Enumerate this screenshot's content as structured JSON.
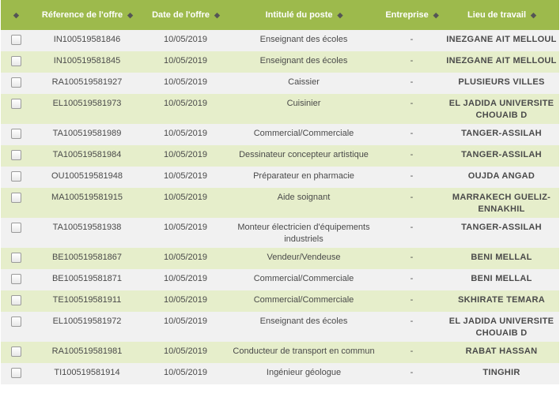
{
  "columns": {
    "select_sort": "◆",
    "reference": "Réference de l'offre",
    "date": "Date de l'offre",
    "intitule": "Intitulé du poste",
    "entreprise": "Entreprise",
    "lieu": "Lieu de travail",
    "sort_icon": "◆"
  },
  "rows": [
    {
      "ref": "IN100519581846",
      "date": "10/05/2019",
      "poste": "Enseignant des écoles",
      "entreprise": "-",
      "lieu": "INEZGANE AIT MELLOUL"
    },
    {
      "ref": "IN100519581845",
      "date": "10/05/2019",
      "poste": "Enseignant des écoles",
      "entreprise": "-",
      "lieu": "INEZGANE AIT MELLOUL"
    },
    {
      "ref": "RA100519581927",
      "date": "10/05/2019",
      "poste": "Caissier",
      "entreprise": "-",
      "lieu": "PLUSIEURS VILLES"
    },
    {
      "ref": "EL100519581973",
      "date": "10/05/2019",
      "poste": "Cuisinier",
      "entreprise": "-",
      "lieu": "EL JADIDA UNIVERSITE CHOUAIB D"
    },
    {
      "ref": "TA100519581989",
      "date": "10/05/2019",
      "poste": "Commercial/Commerciale",
      "entreprise": "-",
      "lieu": "TANGER-ASSILAH"
    },
    {
      "ref": "TA100519581984",
      "date": "10/05/2019",
      "poste": "Dessinateur concepteur artistique",
      "entreprise": "-",
      "lieu": "TANGER-ASSILAH"
    },
    {
      "ref": "OU100519581948",
      "date": "10/05/2019",
      "poste": "Préparateur en pharmacie",
      "entreprise": "-",
      "lieu": "OUJDA ANGAD"
    },
    {
      "ref": "MA100519581915",
      "date": "10/05/2019",
      "poste": "Aide soignant",
      "entreprise": "-",
      "lieu": "MARRAKECH GUELIZ-ENNAKHIL"
    },
    {
      "ref": "TA100519581938",
      "date": "10/05/2019",
      "poste": "Monteur électricien d'équipements industriels",
      "entreprise": "-",
      "lieu": "TANGER-ASSILAH"
    },
    {
      "ref": "BE100519581867",
      "date": "10/05/2019",
      "poste": "Vendeur/Vendeuse",
      "entreprise": "-",
      "lieu": "BENI MELLAL"
    },
    {
      "ref": "BE100519581871",
      "date": "10/05/2019",
      "poste": "Commercial/Commerciale",
      "entreprise": "-",
      "lieu": "BENI MELLAL"
    },
    {
      "ref": "TE100519581911",
      "date": "10/05/2019",
      "poste": "Commercial/Commerciale",
      "entreprise": "-",
      "lieu": "SKHIRATE TEMARA"
    },
    {
      "ref": "EL100519581972",
      "date": "10/05/2019",
      "poste": "Enseignant des écoles",
      "entreprise": "-",
      "lieu": "EL JADIDA UNIVERSITE CHOUAIB D"
    },
    {
      "ref": "RA100519581981",
      "date": "10/05/2019",
      "poste": "Conducteur de transport en commun",
      "entreprise": "-",
      "lieu": "RABAT HASSAN"
    },
    {
      "ref": "TI100519581914",
      "date": "10/05/2019",
      "poste": "Ingénieur géologue",
      "entreprise": "-",
      "lieu": "TINGHIR"
    }
  ],
  "colors": {
    "header_bg": "#9dba4c",
    "row_odd": "#f1f1f1",
    "row_even": "#e6eecb"
  }
}
